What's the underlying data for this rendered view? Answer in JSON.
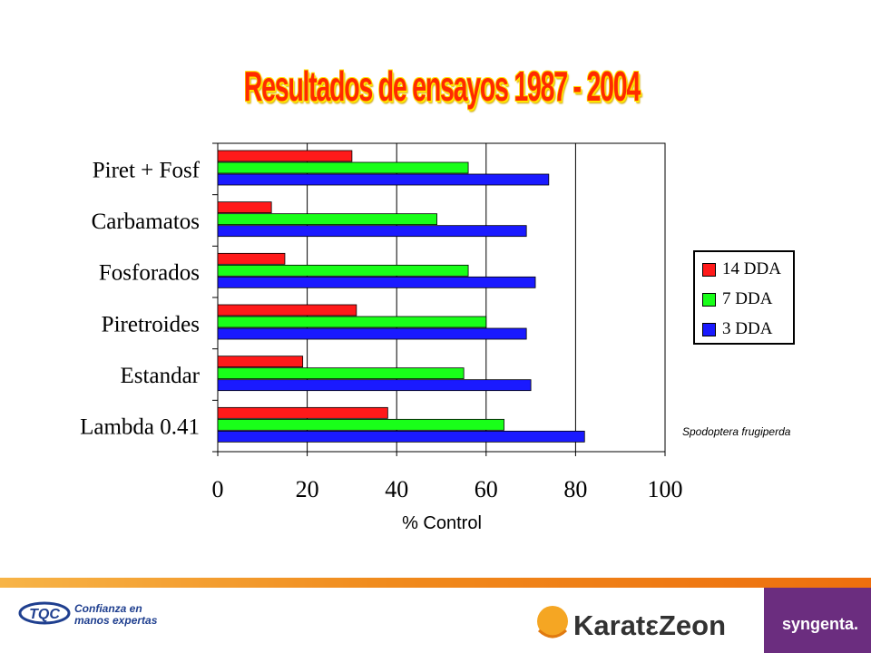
{
  "slide": {
    "title": "Resultados de ensayos 1987 - 2004",
    "species_note": "Spodoptera frugiperda",
    "footer": {
      "tqc_logo": "TQC",
      "tqc_tagline_1": "Confianza en",
      "tqc_tagline_2": "manos expertas",
      "product_logo": "KaratεZeon",
      "company_logo": "syngenta."
    }
  },
  "chart_data": {
    "type": "bar",
    "orientation": "horizontal",
    "categories": [
      "Piret + Fosf",
      "Carbamatos",
      "Fosforados",
      "Piretroides",
      "Estandar",
      "Lambda 0.41"
    ],
    "series": [
      {
        "name": "14 DDA",
        "color": "#ff1a1a",
        "values": [
          30,
          12,
          15,
          31,
          19,
          38
        ]
      },
      {
        "name": "7 DDA",
        "color": "#19ff19",
        "values": [
          56,
          49,
          56,
          60,
          55,
          64
        ]
      },
      {
        "name": "3 DDA",
        "color": "#1a1aff",
        "values": [
          74,
          69,
          71,
          69,
          70,
          82
        ]
      }
    ],
    "xlabel": "% Control",
    "xlim": [
      0,
      100
    ],
    "xticks": [
      0,
      20,
      40,
      60,
      80,
      100
    ],
    "grid": "vertical",
    "legend_position": "right"
  }
}
